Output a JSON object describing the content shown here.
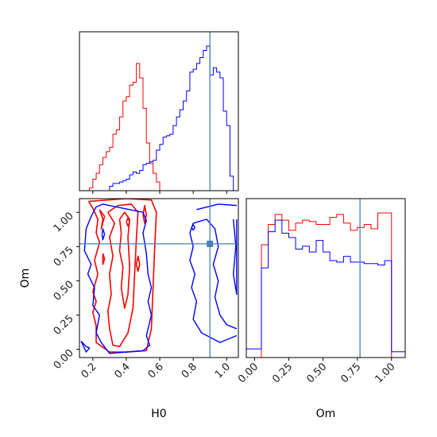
{
  "chart_data": {
    "type": "corner",
    "parameters": [
      "H0",
      "Om"
    ],
    "xlabel_bottom_left": "H0",
    "ylabel_bottom_left": "Om",
    "xlabel_bottom_right": "Om",
    "truth": {
      "H0": 0.9,
      "Om": 0.77
    },
    "truth_color": "#4682b4",
    "series_colors": {
      "red": "#ff0000",
      "blue": "#0000ff"
    },
    "h0_range": [
      0.12,
      1.07
    ],
    "om_range": [
      -0.06,
      1.1
    ],
    "h0_ticks": [
      "0.2",
      "0.4",
      "0.6",
      "0.8",
      "1.0"
    ],
    "om_ticks": [
      "0.00",
      "0.25",
      "0.50",
      "0.75",
      "1.00"
    ],
    "h0_tick_values": [
      0.2,
      0.4,
      0.6,
      0.8,
      1.0
    ],
    "om_tick_values": [
      0.0,
      0.25,
      0.5,
      0.75,
      1.0
    ],
    "hist_h0": {
      "bin_edges": [
        0.12,
        0.14,
        0.16,
        0.18,
        0.2,
        0.22,
        0.24,
        0.26,
        0.28,
        0.3,
        0.32,
        0.34,
        0.36,
        0.38,
        0.4,
        0.42,
        0.44,
        0.46,
        0.48,
        0.5,
        0.52,
        0.54,
        0.56,
        0.58,
        0.6,
        0.62,
        0.64,
        0.66,
        0.68,
        0.7,
        0.72,
        0.74,
        0.76,
        0.78,
        0.8,
        0.82,
        0.84,
        0.86,
        0.88,
        0.9,
        0.92,
        0.94,
        0.96,
        0.98,
        1.0,
        1.02,
        1.04,
        1.06
      ],
      "red": [
        0,
        0,
        0,
        0.02,
        0.08,
        0.12,
        0.18,
        0.23,
        0.27,
        0.3,
        0.39,
        0.42,
        0.51,
        0.62,
        0.65,
        0.73,
        0.75,
        0.88,
        0.78,
        0.57,
        0.33,
        0.19,
        0.12,
        0.06,
        0,
        0,
        0,
        0,
        0,
        0,
        0,
        0,
        0,
        0,
        0,
        0,
        0,
        0,
        0,
        0,
        0,
        0,
        0,
        0,
        0,
        0,
        0
      ],
      "blue": [
        0,
        0,
        0,
        0,
        0,
        0,
        0,
        0,
        0,
        0.03,
        0.05,
        0.05,
        0.06,
        0.07,
        0.08,
        0.11,
        0.13,
        0.12,
        0.14,
        0.18,
        0.19,
        0.2,
        0.21,
        0.28,
        0.32,
        0.37,
        0.38,
        0.39,
        0.45,
        0.51,
        0.56,
        0.62,
        0.69,
        0.82,
        0.84,
        0.88,
        0.92,
        0.97,
        1.0,
        0.8,
        0.85,
        0.82,
        0.78,
        0.55,
        0.45,
        0.1,
        0.0
      ]
    },
    "hist_om": {
      "bin_edges": [
        -0.06,
        0.0,
        0.05,
        0.1,
        0.15,
        0.2,
        0.25,
        0.3,
        0.35,
        0.4,
        0.45,
        0.5,
        0.55,
        0.6,
        0.65,
        0.7,
        0.75,
        0.8,
        0.85,
        0.9,
        0.95,
        1.0,
        1.05,
        1.1
      ],
      "red": [
        0,
        0,
        0.78,
        0.92,
        0.99,
        0.95,
        0.88,
        0.93,
        0.95,
        0.94,
        0.92,
        0.92,
        0.97,
        0.99,
        0.93,
        0.88,
        0.9,
        0.92,
        0.89,
        1.0,
        1.0,
        0.0,
        0.0
      ],
      "blue": [
        0.06,
        0.06,
        0.62,
        0.87,
        0.95,
        0.86,
        0.83,
        0.75,
        0.77,
        0.73,
        0.81,
        0.73,
        0.67,
        0.66,
        0.7,
        0.66,
        0.66,
        0.65,
        0.65,
        0.64,
        0.67,
        0.04,
        0.04
      ]
    },
    "contours": {
      "red": [
        [
          [
            0.175,
            1.08
          ],
          [
            0.2,
            1.03
          ],
          [
            0.23,
            0.95
          ],
          [
            0.22,
            0.85
          ],
          [
            0.24,
            0.78
          ],
          [
            0.21,
            0.65
          ],
          [
            0.23,
            0.55
          ],
          [
            0.2,
            0.42
          ],
          [
            0.22,
            0.35
          ],
          [
            0.2,
            0.27
          ],
          [
            0.22,
            0.17
          ],
          [
            0.22,
            0.05
          ],
          [
            0.3,
            -0.02
          ],
          [
            0.4,
            -0.02
          ],
          [
            0.52,
            -0.01
          ],
          [
            0.55,
            0.15
          ],
          [
            0.56,
            0.45
          ],
          [
            0.57,
            0.75
          ],
          [
            0.58,
            1.0
          ],
          [
            0.55,
            1.09
          ],
          [
            0.4,
            1.1
          ],
          [
            0.175,
            1.08
          ]
        ],
        [
          [
            0.29,
            1.0
          ],
          [
            0.33,
            0.92
          ],
          [
            0.3,
            0.82
          ],
          [
            0.32,
            0.68
          ],
          [
            0.3,
            0.55
          ],
          [
            0.31,
            0.4
          ],
          [
            0.29,
            0.28
          ],
          [
            0.3,
            0.15
          ],
          [
            0.32,
            0.03
          ],
          [
            0.36,
            0.02
          ],
          [
            0.41,
            0.12
          ],
          [
            0.44,
            0.3
          ],
          [
            0.45,
            0.55
          ],
          [
            0.46,
            0.8
          ],
          [
            0.47,
            1.0
          ],
          [
            0.43,
            1.06
          ],
          [
            0.35,
            1.05
          ],
          [
            0.29,
            1.0
          ]
        ],
        [
          [
            0.36,
            0.95
          ],
          [
            0.37,
            0.85
          ],
          [
            0.36,
            0.72
          ],
          [
            0.38,
            0.6
          ],
          [
            0.37,
            0.45
          ],
          [
            0.39,
            0.3
          ],
          [
            0.41,
            0.4
          ],
          [
            0.42,
            0.6
          ],
          [
            0.41,
            0.82
          ],
          [
            0.42,
            0.95
          ],
          [
            0.39,
            1.0
          ],
          [
            0.36,
            0.95
          ]
        ],
        [
          [
            0.24,
            1.02
          ],
          [
            0.26,
            0.95
          ],
          [
            0.25,
            0.88
          ],
          [
            0.27,
            0.97
          ],
          [
            0.24,
            1.02
          ]
        ],
        [
          [
            0.5,
            0.98
          ],
          [
            0.51,
            1.05
          ],
          [
            0.52,
            0.98
          ],
          [
            0.51,
            0.92
          ],
          [
            0.5,
            0.98
          ]
        ],
        [
          [
            0.46,
            0.62
          ],
          [
            0.47,
            0.68
          ],
          [
            0.48,
            0.62
          ],
          [
            0.47,
            0.57
          ],
          [
            0.46,
            0.62
          ]
        ],
        [
          [
            0.26,
            0.7
          ],
          [
            0.27,
            0.66
          ],
          [
            0.26,
            0.62
          ],
          [
            0.26,
            0.7
          ]
        ],
        [
          [
            0.4,
            0.93
          ],
          [
            0.41,
            0.96
          ],
          [
            0.42,
            0.93
          ],
          [
            0.41,
            0.9
          ],
          [
            0.4,
            0.93
          ]
        ]
      ],
      "blue": [
        [
          [
            0.16,
            0.88
          ],
          [
            0.19,
            0.97
          ],
          [
            0.22,
            1.04
          ],
          [
            0.26,
            1.06
          ],
          [
            0.42,
            1.02
          ],
          [
            0.5,
            1.0
          ],
          [
            0.52,
            0.94
          ],
          [
            0.5,
            0.85
          ],
          [
            0.52,
            0.7
          ],
          [
            0.53,
            0.55
          ],
          [
            0.55,
            0.45
          ],
          [
            0.53,
            0.35
          ],
          [
            0.55,
            0.25
          ],
          [
            0.52,
            0.1
          ],
          [
            0.54,
            0.03
          ],
          [
            0.5,
            -0.01
          ],
          [
            0.3,
            -0.03
          ],
          [
            0.25,
            0.05
          ],
          [
            0.22,
            0.12
          ],
          [
            0.24,
            0.25
          ],
          [
            0.2,
            0.32
          ],
          [
            0.21,
            0.45
          ],
          [
            0.17,
            0.55
          ],
          [
            0.19,
            0.62
          ],
          [
            0.15,
            0.72
          ],
          [
            0.16,
            0.88
          ]
        ],
        [
          [
            0.82,
            1.02
          ],
          [
            0.95,
            1.06
          ],
          [
            1.06,
            1.05
          ]
        ],
        [
          [
            1.06,
            0.1
          ],
          [
            0.96,
            0.05
          ],
          [
            0.85,
            0.12
          ],
          [
            0.8,
            0.22
          ],
          [
            0.82,
            0.35
          ],
          [
            0.79,
            0.45
          ],
          [
            0.81,
            0.55
          ],
          [
            0.78,
            0.65
          ],
          [
            0.8,
            0.75
          ],
          [
            0.78,
            0.85
          ],
          [
            0.8,
            0.92
          ],
          [
            0.88,
            0.95
          ],
          [
            0.93,
            0.88
          ],
          [
            0.95,
            0.75
          ],
          [
            0.92,
            0.62
          ],
          [
            0.95,
            0.5
          ],
          [
            0.93,
            0.38
          ],
          [
            0.96,
            0.25
          ],
          [
            1.0,
            0.18
          ],
          [
            1.06,
            0.15
          ]
        ],
        [
          [
            1.04,
            0.95
          ],
          [
            1.055,
            0.75
          ],
          [
            1.04,
            0.55
          ],
          [
            1.06,
            0.4
          ],
          [
            1.06,
            0.95
          ]
        ],
        [
          [
            0.13,
            0.06
          ],
          [
            0.16,
            0.02
          ],
          [
            0.18,
            0.01
          ],
          [
            0.16,
            -0.02
          ],
          [
            0.13,
            0.06
          ]
        ],
        [
          [
            0.79,
            0.89
          ],
          [
            0.8,
            0.91
          ],
          [
            0.81,
            0.89
          ],
          [
            0.8,
            0.87
          ],
          [
            0.79,
            0.89
          ]
        ],
        [
          [
            0.255,
            0.84
          ],
          [
            0.26,
            0.88
          ],
          [
            0.27,
            0.84
          ],
          [
            0.26,
            0.8
          ],
          [
            0.255,
            0.84
          ]
        ]
      ]
    }
  }
}
